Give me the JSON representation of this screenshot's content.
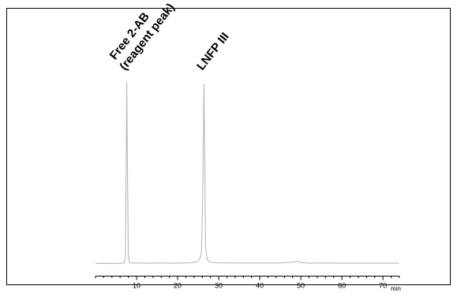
{
  "chart_data": {
    "type": "line",
    "title": "",
    "xlabel": "min",
    "ylabel": "",
    "xlim": [
      0,
      74
    ],
    "ylim": [
      0,
      100
    ],
    "grid": false,
    "x_major_ticks": [
      10,
      20,
      30,
      40,
      50,
      60,
      70
    ],
    "x_tick_labels": [
      "10",
      "20",
      "30",
      "40",
      "50",
      "60",
      "70"
    ],
    "series": [
      {
        "color": "#b8b8b8",
        "x": [
          0,
          2,
          4,
          6,
          7.0,
          7.3,
          7.5,
          7.6,
          7.75,
          8.0,
          8.3,
          9,
          12,
          15,
          18,
          21,
          23,
          24.5,
          25.3,
          25.8,
          26.1,
          26.4,
          26.6,
          26.8,
          27.2,
          28,
          30,
          35,
          40,
          45,
          48,
          49,
          50,
          52,
          56,
          60,
          65,
          70,
          74
        ],
        "y": [
          0.2,
          0.3,
          0.2,
          0.3,
          0.6,
          4,
          60,
          98,
          60,
          5,
          0.8,
          0.5,
          0.4,
          0.5,
          0.4,
          0.5,
          0.6,
          1.0,
          2.2,
          6,
          35,
          97,
          60,
          10,
          2.2,
          0.9,
          0.6,
          0.5,
          0.5,
          0.5,
          0.9,
          1.3,
          0.8,
          0.4,
          0.5,
          0.4,
          0.4,
          0.4,
          0.4
        ]
      }
    ],
    "annotations": [
      {
        "lines": [
          "Free 2-AB",
          "(reagent peak)"
        ],
        "x": 7.6
      },
      {
        "lines": [
          "LNFP III"
        ],
        "x": 26.4
      }
    ]
  }
}
